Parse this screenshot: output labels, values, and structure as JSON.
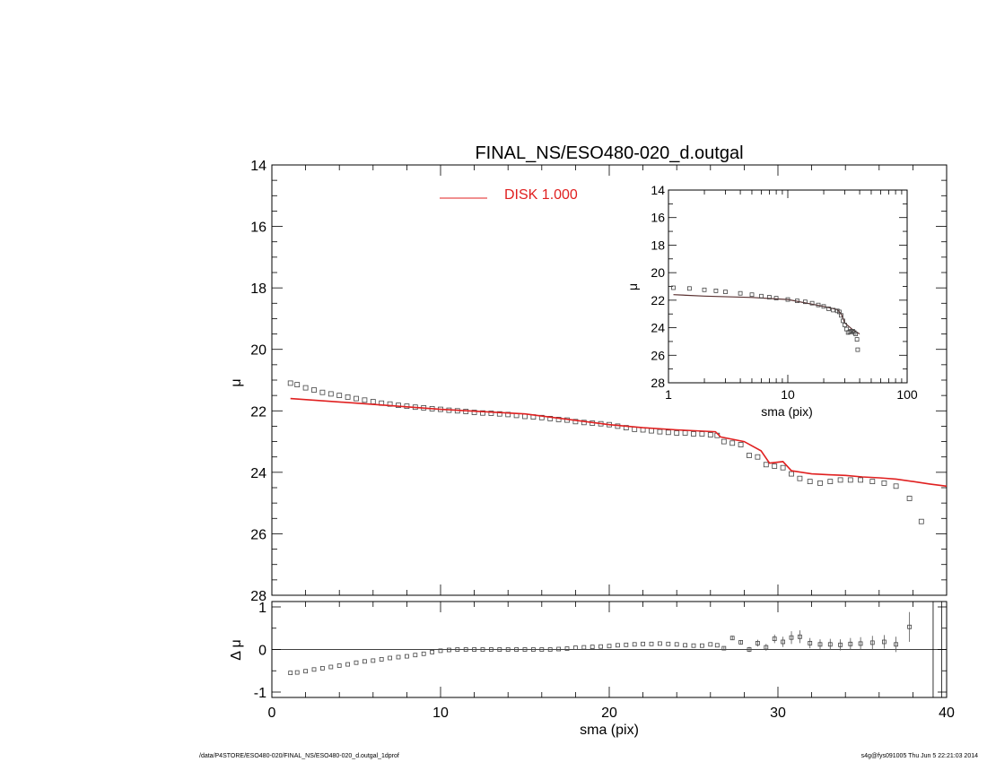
{
  "footer": {
    "path": "/data/P4STORE/ESO480-020/FINAL_NS/ESO480-020_d.outgal_1dprof",
    "stamp": "s4g@fys091005  Thu Jun  5 22:21:03 2014"
  },
  "colors": {
    "model": "#e02020",
    "data": "#555555",
    "axis": "#000000"
  },
  "chart_data": [
    {
      "id": "main",
      "type": "scatter",
      "title": "FINAL_NS/ESO480-020_d.outgal",
      "xlabel": "",
      "ylabel": "μ",
      "xlim": [
        0,
        40
      ],
      "ylim": [
        28,
        14
      ],
      "y_inverted": true,
      "yticks": [
        "14",
        "16",
        "18",
        "20",
        "22",
        "24",
        "26",
        "28"
      ],
      "legend": {
        "label": "DISK  1.000",
        "placement": "top"
      },
      "series": [
        {
          "name": "DISK  1.000",
          "kind": "line",
          "color": "#e02020",
          "x": [
            1.1,
            5,
            10,
            15,
            20,
            22,
            24,
            26.3,
            26.6,
            28,
            29,
            29.5,
            30.3,
            30.8,
            32,
            33,
            34,
            35,
            36,
            37,
            38,
            39,
            40
          ],
          "y": [
            21.6,
            21.75,
            21.95,
            22.1,
            22.45,
            22.55,
            22.62,
            22.68,
            22.85,
            23.0,
            23.3,
            23.7,
            23.65,
            23.95,
            24.05,
            24.08,
            24.1,
            24.15,
            24.18,
            24.22,
            24.3,
            24.38,
            24.45
          ]
        },
        {
          "name": "",
          "kind": "points",
          "x": [
            1.1,
            1.5,
            2,
            2.5,
            3,
            3.5,
            4,
            4.5,
            5,
            5.5,
            6,
            6.5,
            7,
            7.5,
            8,
            8.5,
            9,
            9.5,
            10,
            10.5,
            11,
            11.5,
            12,
            12.5,
            13,
            13.5,
            14,
            14.5,
            15,
            15.5,
            16,
            16.5,
            17,
            17.5,
            18,
            18.5,
            19,
            19.5,
            20,
            20.5,
            21,
            21.5,
            22,
            22.5,
            23,
            23.5,
            24,
            24.5,
            25,
            25.5,
            26,
            26.4,
            26.8,
            27.3,
            27.8,
            28.3,
            28.8,
            29.3,
            29.8,
            30.3,
            30.8,
            31.3,
            31.9,
            32.5,
            33.1,
            33.7,
            34.3,
            34.9,
            35.6,
            36.3,
            37.0,
            37.8,
            38.5
          ],
          "y": [
            21.1,
            21.15,
            21.25,
            21.32,
            21.4,
            21.45,
            21.5,
            21.55,
            21.6,
            21.65,
            21.7,
            21.75,
            21.78,
            21.82,
            21.85,
            21.88,
            21.9,
            21.93,
            21.95,
            21.98,
            22.0,
            22.02,
            22.05,
            22.07,
            22.08,
            22.1,
            22.12,
            22.15,
            22.18,
            22.2,
            22.22,
            22.25,
            22.28,
            22.3,
            22.35,
            22.38,
            22.4,
            22.42,
            22.45,
            22.5,
            22.55,
            22.6,
            22.62,
            22.65,
            22.68,
            22.7,
            22.72,
            22.72,
            22.75,
            22.75,
            22.78,
            22.8,
            23.0,
            23.05,
            23.1,
            23.45,
            23.5,
            23.75,
            23.8,
            23.85,
            24.05,
            24.2,
            24.3,
            24.35,
            24.3,
            24.25,
            24.25,
            24.25,
            24.3,
            24.35,
            24.45,
            24.85,
            25.6
          ]
        }
      ]
    },
    {
      "id": "inset",
      "type": "scatter",
      "xlabel": "sma (pix)",
      "ylabel": "μ",
      "x_scale": "log",
      "xlim": [
        1,
        100
      ],
      "ylim": [
        28,
        14
      ],
      "y_inverted": true,
      "xticks": [
        "1",
        "10",
        "100"
      ],
      "yticks": [
        "14",
        "16",
        "18",
        "20",
        "22",
        "24",
        "26",
        "28"
      ],
      "series": [
        {
          "name": "",
          "kind": "line",
          "color": "#5a3030",
          "x": [
            1.1,
            2,
            5,
            10,
            20,
            26,
            28,
            30,
            35,
            40
          ],
          "y": [
            21.6,
            21.7,
            21.8,
            21.95,
            22.45,
            22.68,
            23.0,
            23.65,
            24.15,
            24.45
          ]
        },
        {
          "name": "",
          "kind": "points",
          "x": [
            1.1,
            1.5,
            2,
            2.5,
            3,
            4,
            5,
            6,
            7,
            8,
            10,
            12,
            14,
            16,
            18,
            20,
            22,
            24,
            26,
            27,
            28,
            29,
            30,
            31,
            32,
            33,
            34,
            35,
            36,
            37,
            38,
            38.5
          ],
          "y": [
            21.1,
            21.15,
            21.25,
            21.32,
            21.4,
            21.5,
            21.6,
            21.7,
            21.78,
            21.85,
            21.95,
            22.05,
            22.12,
            22.22,
            22.35,
            22.45,
            22.62,
            22.72,
            22.78,
            22.85,
            23.1,
            23.5,
            23.8,
            24.1,
            24.35,
            24.3,
            24.25,
            24.25,
            24.35,
            24.45,
            24.85,
            25.6
          ]
        }
      ]
    },
    {
      "id": "residual",
      "type": "scatter",
      "xlabel": "sma (pix)",
      "ylabel": "Δ μ",
      "xlim": [
        0,
        40
      ],
      "ylim": [
        -1,
        1
      ],
      "xticks": [
        "0",
        "10",
        "20",
        "30",
        "40"
      ],
      "yticks": [
        "-1",
        "0",
        "1"
      ],
      "reference_line": 0,
      "series": [
        {
          "name": "",
          "kind": "points",
          "x": [
            1.1,
            1.5,
            2,
            2.5,
            3,
            3.5,
            4,
            4.5,
            5,
            5.5,
            6,
            6.5,
            7,
            7.5,
            8,
            8.5,
            9,
            9.5,
            10,
            10.5,
            11,
            11.5,
            12,
            12.5,
            13,
            13.5,
            14,
            14.5,
            15,
            15.5,
            16,
            16.5,
            17,
            17.5,
            18,
            18.5,
            19,
            19.5,
            20,
            20.5,
            21,
            21.5,
            22,
            22.5,
            23,
            23.5,
            24,
            24.5,
            25,
            25.5,
            26,
            26.4,
            26.8,
            27.3,
            27.8,
            28.3,
            28.8,
            29.3,
            29.8,
            30.3,
            30.8,
            31.3,
            31.9,
            32.5,
            33.1,
            33.7,
            34.3,
            34.9,
            35.6,
            36.3,
            37.0,
            37.8
          ],
          "y": [
            -0.55,
            -0.54,
            -0.51,
            -0.47,
            -0.44,
            -0.41,
            -0.38,
            -0.35,
            -0.31,
            -0.28,
            -0.26,
            -0.23,
            -0.2,
            -0.18,
            -0.16,
            -0.13,
            -0.1,
            -0.06,
            -0.03,
            -0.01,
            0.0,
            0.0,
            0.0,
            0.0,
            0.0,
            0.0,
            0.0,
            0.0,
            0.0,
            0.0,
            0.0,
            0.0,
            0.01,
            0.02,
            0.04,
            0.05,
            0.06,
            0.07,
            0.08,
            0.1,
            0.11,
            0.12,
            0.13,
            0.13,
            0.14,
            0.13,
            0.12,
            0.1,
            0.09,
            0.09,
            0.12,
            0.1,
            0.03,
            0.27,
            0.17,
            0.0,
            0.15,
            0.05,
            0.25,
            0.18,
            0.28,
            0.3,
            0.15,
            0.12,
            0.12,
            0.11,
            0.13,
            0.14,
            0.16,
            0.18,
            0.12,
            0.53
          ],
          "err": [
            0.01,
            0.01,
            0.01,
            0.01,
            0.01,
            0.01,
            0.01,
            0.01,
            0.01,
            0.01,
            0.01,
            0.01,
            0.01,
            0.01,
            0.01,
            0.01,
            0.01,
            0.01,
            0.01,
            0.01,
            0.01,
            0.01,
            0.01,
            0.01,
            0.01,
            0.01,
            0.01,
            0.01,
            0.01,
            0.01,
            0.01,
            0.01,
            0.01,
            0.01,
            0.01,
            0.01,
            0.01,
            0.01,
            0.01,
            0.01,
            0.01,
            0.01,
            0.01,
            0.01,
            0.01,
            0.01,
            0.01,
            0.01,
            0.01,
            0.01,
            0.01,
            0.01,
            0.03,
            0.05,
            0.05,
            0.06,
            0.08,
            0.08,
            0.1,
            0.12,
            0.15,
            0.15,
            0.12,
            0.12,
            0.13,
            0.13,
            0.14,
            0.15,
            0.16,
            0.16,
            0.18,
            0.35
          ]
        }
      ]
    }
  ]
}
